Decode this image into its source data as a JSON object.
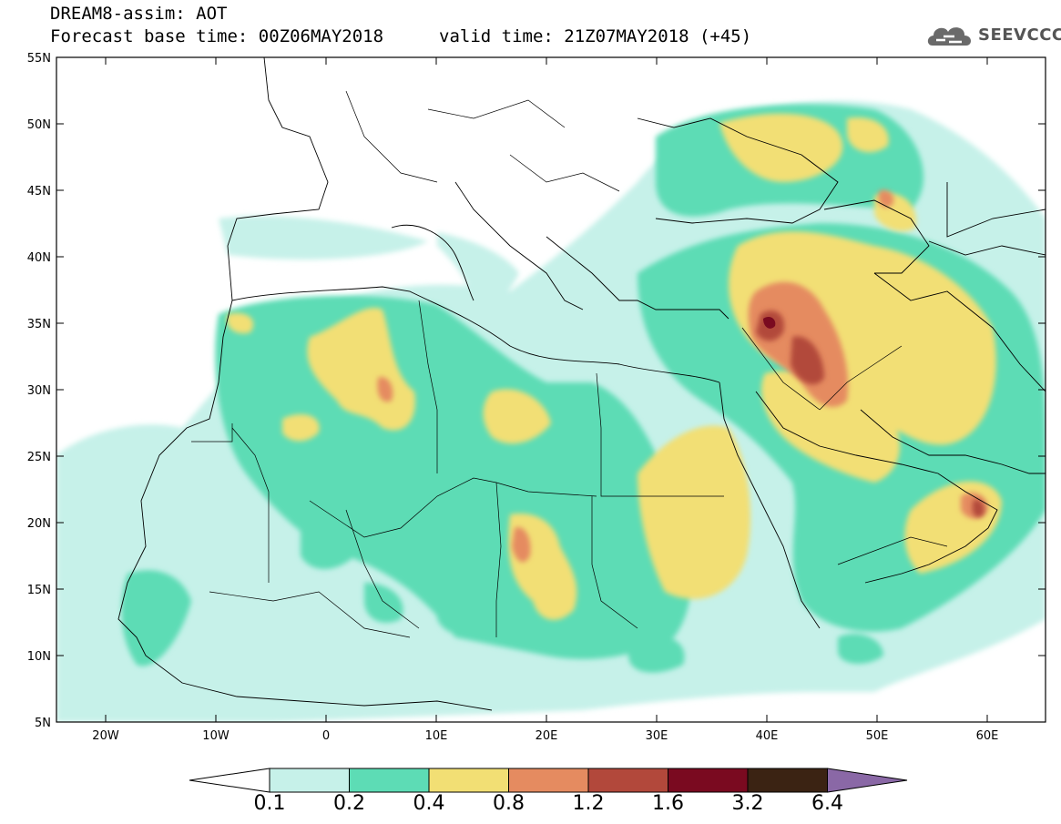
{
  "header": {
    "title_line1": "DREAM8-assim: AOT",
    "title_line2": "Forecast base time: 00Z06MAY2018",
    "valid_time": "valid time: 21Z07MAY2018 (+45)"
  },
  "logo": {
    "text": "SEEVCCC",
    "icon": "cloud-logo-icon"
  },
  "map": {
    "lat_labels": [
      "55N",
      "50N",
      "45N",
      "40N",
      "35N",
      "30N",
      "25N",
      "20N",
      "15N",
      "10N",
      "5N"
    ],
    "lon_labels": [
      "20W",
      "10W",
      "0",
      "10E",
      "20E",
      "30E",
      "40E",
      "50E",
      "60E"
    ],
    "lat_range": [
      5,
      55
    ],
    "lon_range": [
      -25,
      65
    ]
  },
  "colorbar": {
    "thresholds": [
      "0.1",
      "0.2",
      "0.4",
      "0.8",
      "1.2",
      "1.6",
      "3.2",
      "6.4"
    ],
    "colors": [
      "#c6f1e9",
      "#5ddcb5",
      "#f2df74",
      "#e58b60",
      "#b2483b",
      "#7a0a20",
      "#3b2313",
      "#8a68a6"
    ]
  }
}
